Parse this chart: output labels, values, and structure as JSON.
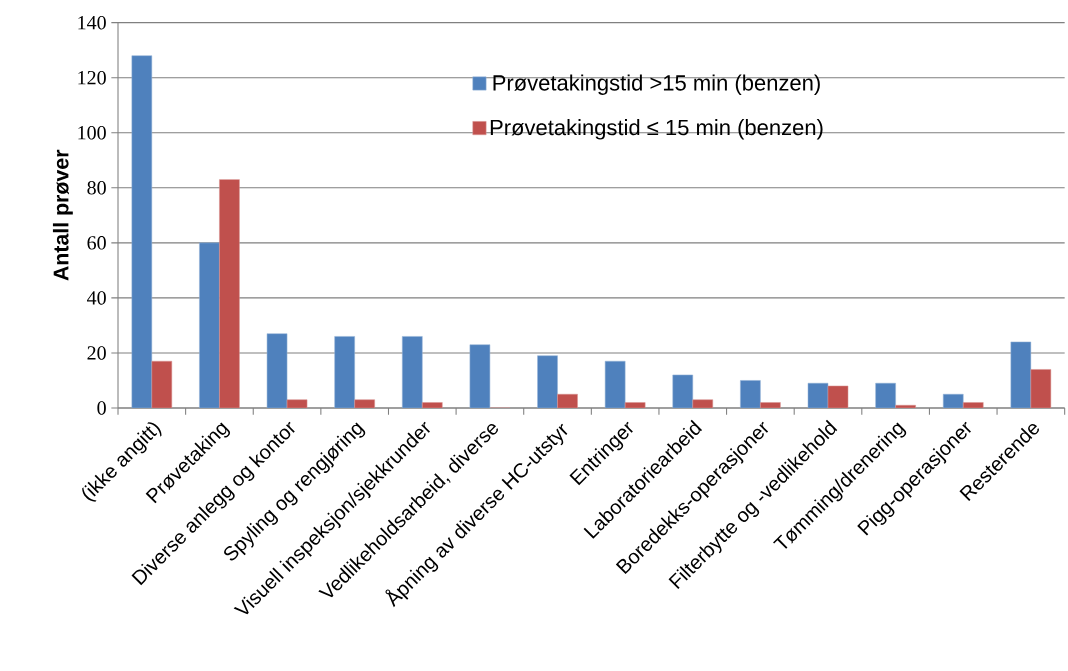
{
  "chart_data": {
    "type": "bar",
    "ylabel": "Antall prøver",
    "categories": [
      "(ikke angitt)",
      "Prøvetaking",
      "Diverse anlegg og kontor",
      "Spyling og rengjøring",
      "Visuell inspeksjon/sjekkrunder",
      "Vedlikeholdsarbeid, diverse",
      "Åpning av diverse HC-utstyr",
      "Entringer",
      "Laboratoriearbeid",
      "Boredekks-operasjoner",
      "Filterbytte og -vedlikehold",
      "Tømming/drenering",
      "Pigg-operasjoner",
      "Resterende"
    ],
    "series": [
      {
        "name": "Prøvetakingstid >15 min (benzen)",
        "color": "#4f81bd",
        "values": [
          128,
          60,
          27,
          26,
          26,
          23,
          19,
          17,
          12,
          10,
          9,
          9,
          5,
          24
        ]
      },
      {
        "name": "Prøvetakingstid ≤ 15 min (benzen)",
        "color": "#c0504d",
        "values": [
          17,
          83,
          3,
          3,
          2,
          0,
          5,
          2,
          3,
          2,
          8,
          1,
          2,
          14
        ]
      }
    ],
    "ylim": [
      0,
      140
    ],
    "yticks": [
      0,
      20,
      40,
      60,
      80,
      100,
      120,
      140
    ],
    "grid": "y",
    "legend": "top right"
  }
}
